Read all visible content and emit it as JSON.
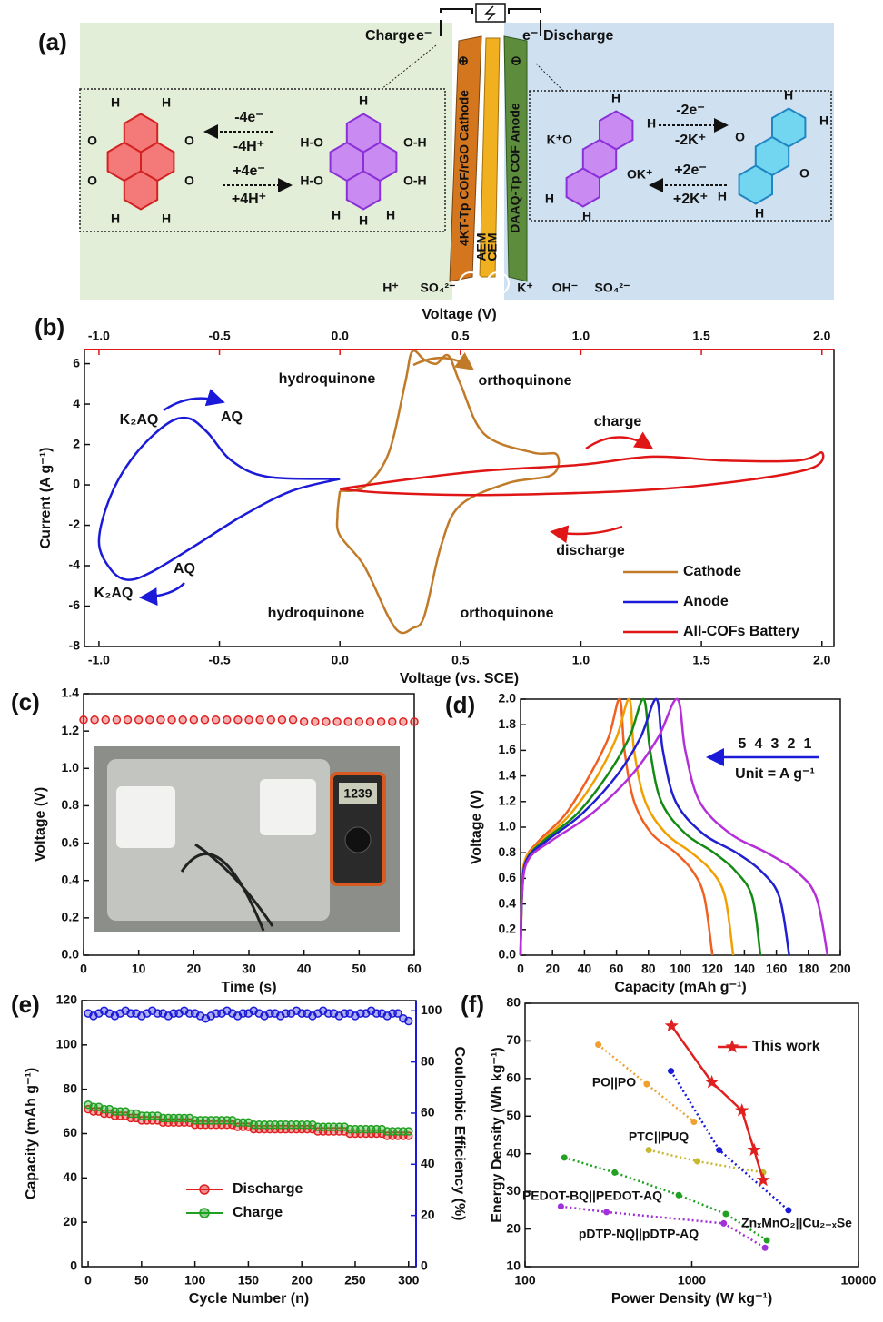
{
  "figure_a": {
    "label": "(a)",
    "charge": "Charge",
    "discharge": "Discharge",
    "electron_left": "e⁻",
    "electron_right": "e⁻",
    "plus": "⊕",
    "minus": "⊖",
    "cathode": "4KT-Tp COF/rGO Cathode",
    "aem": "AEM",
    "cem": "CEM",
    "anode": "DAAQ-Tp COF Anode",
    "ions": [
      "H⁺",
      "SO₄²⁻",
      "K⁺",
      "OH⁻",
      "SO₄²⁻"
    ],
    "left_reaction": [
      "-4e⁻",
      "-4H⁺",
      "+4e⁻",
      "+4H⁺"
    ],
    "right_reaction": [
      "-2e⁻",
      "-2K⁺",
      "+2e⁻",
      "+2K⁺"
    ],
    "molecules": [
      {
        "atoms": [
          "H",
          "H",
          "O",
          "O",
          "O",
          "O",
          "H",
          "H"
        ]
      },
      {
        "atoms": [
          "H",
          "H",
          "H-O",
          "H-O",
          "O-H",
          "O-H",
          "H",
          "H"
        ]
      },
      {
        "atoms": [
          "H",
          "H",
          "K⁺O",
          "OK⁺",
          "H",
          "H"
        ]
      },
      {
        "atoms": [
          "H",
          "H",
          "O",
          "O",
          "H",
          "H"
        ]
      }
    ]
  },
  "chart_data": [
    {
      "label": "(b)",
      "type": "line",
      "smooth": true,
      "xlabel": "Voltage (vs. SCE)",
      "ylabel": "Current (A g⁻¹)",
      "x2label": "Voltage (V)",
      "x2_color": "#e01515",
      "xlim": [
        -1.06,
        2.05
      ],
      "xticks": [
        {
          "value": -1,
          "label": "-1.0"
        },
        -0.5,
        {
          "value": 0,
          "label": "0.0"
        },
        0.5,
        {
          "value": 1,
          "label": "1.0"
        },
        1.5,
        {
          "value": 2,
          "label": "2.0"
        }
      ],
      "x2lim": [
        -1.06,
        2.05
      ],
      "x2ticks": [
        {
          "value": -1,
          "label": "-1.0"
        },
        -0.5,
        {
          "value": 0,
          "label": "0.0"
        },
        0.5,
        {
          "value": 1,
          "label": "1.0"
        },
        1.5,
        {
          "value": 2,
          "label": "2.0"
        }
      ],
      "ylim": [
        -8,
        6.7
      ],
      "yticks": [
        -8,
        -6,
        -4,
        -2,
        0,
        2,
        4,
        6
      ],
      "legend": "lower right",
      "series": [
        {
          "name": "Cathode",
          "color": "#c07a28",
          "x": [
            0.0,
            0.1,
            0.2,
            0.27,
            0.3,
            0.35,
            0.4,
            0.45,
            0.5,
            0.6,
            0.8,
            0.9,
            0.88,
            0.7,
            0.5,
            0.42,
            0.35,
            0.3,
            0.25,
            0.2,
            0.1,
            0.0,
            -0.01,
            0.0
          ],
          "values": [
            -0.3,
            -0.1,
            1.5,
            5.0,
            6.6,
            6.2,
            6.0,
            6.4,
            5.0,
            2.5,
            1.6,
            1.5,
            0.5,
            0.1,
            -1.0,
            -3.0,
            -6.5,
            -7.1,
            -7.3,
            -6.5,
            -4.0,
            -2.5,
            -1.5,
            -0.3
          ]
        },
        {
          "name": "Anode",
          "color": "#1a1ad8",
          "x": [
            0.0,
            -0.3,
            -0.45,
            -0.55,
            -0.63,
            -0.72,
            -0.85,
            -0.95,
            -1.0,
            -0.95,
            -0.88,
            -0.78,
            -0.6,
            -0.4,
            -0.2,
            0.0
          ],
          "values": [
            0.3,
            0.4,
            1.2,
            2.6,
            3.3,
            3.0,
            1.5,
            -0.5,
            -2.8,
            -4.2,
            -4.7,
            -4.3,
            -3.0,
            -1.5,
            -0.3,
            0.3
          ]
        },
        {
          "name": "All-COFs Battery",
          "color": "#e01515",
          "axis": "x2",
          "x": [
            0.0,
            0.3,
            0.6,
            1.0,
            1.3,
            1.6,
            1.9,
            2.0,
            1.95,
            1.6,
            1.2,
            0.6,
            0.2,
            0.0
          ],
          "values": [
            -0.2,
            0.3,
            0.7,
            1.0,
            1.4,
            1.2,
            1.2,
            1.6,
            0.8,
            0.1,
            -0.3,
            -0.5,
            -0.4,
            -0.2
          ]
        }
      ],
      "annotations": [
        {
          "text": "hydroquinone",
          "color": "#b87a2a"
        },
        {
          "text": "orthoquinone",
          "color": "#b87a2a"
        },
        {
          "text": "hydroquinone",
          "color": "#b87a2a"
        },
        {
          "text": "orthoquinone",
          "color": "#b87a2a"
        },
        {
          "text": "K₂AQ",
          "color": "#1a1ad8"
        },
        {
          "text": "AQ",
          "color": "#1a1ad8"
        },
        {
          "text": "AQ",
          "color": "#1a1ad8"
        },
        {
          "text": "K₂AQ",
          "color": "#1a1ad8"
        },
        {
          "text": "charge",
          "color": "#e01515"
        },
        {
          "text": "discharge",
          "color": "#e01515"
        }
      ]
    },
    {
      "label": "(c)",
      "type": "scatter",
      "xlabel": "Time (s)",
      "ylabel": "Voltage (V)",
      "xlim": [
        0,
        60
      ],
      "xticks": [
        0,
        10,
        20,
        30,
        40,
        50,
        60
      ],
      "ylim": [
        0,
        1.4
      ],
      "yticks": [
        {
          "value": 0,
          "label": "0.0"
        },
        0.2,
        0.4,
        0.6,
        0.8,
        {
          "value": 1,
          "label": "1.0"
        },
        1.2,
        1.4
      ],
      "x": [
        0,
        2,
        4,
        6,
        8,
        10,
        12,
        14,
        16,
        18,
        20,
        22,
        24,
        26,
        28,
        30,
        32,
        34,
        36,
        38,
        40,
        42,
        44,
        46,
        48,
        50,
        52,
        54,
        56,
        58,
        60
      ],
      "series": [
        {
          "color": "#e02020",
          "values": [
            1.26,
            1.26,
            1.26,
            1.26,
            1.26,
            1.26,
            1.26,
            1.26,
            1.26,
            1.26,
            1.26,
            1.26,
            1.26,
            1.26,
            1.26,
            1.26,
            1.26,
            1.26,
            1.26,
            1.26,
            1.25,
            1.25,
            1.25,
            1.25,
            1.25,
            1.25,
            1.25,
            1.25,
            1.25,
            1.25,
            1.25
          ]
        }
      ],
      "photo_display": "1239"
    },
    {
      "label": "(d)",
      "type": "line",
      "smooth": true,
      "xlabel": "Capacity (mAh g⁻¹)",
      "ylabel": "Voltage (V)",
      "xlim": [
        0,
        200
      ],
      "xticks": [
        0,
        20,
        40,
        60,
        80,
        100,
        120,
        140,
        160,
        180,
        200
      ],
      "ylim": [
        0,
        2
      ],
      "yticks": [
        {
          "value": 0,
          "label": "0.0"
        },
        0.2,
        0.4,
        0.6,
        0.8,
        {
          "value": 1,
          "label": "1.0"
        },
        1.2,
        1.4,
        1.6,
        1.8,
        {
          "value": 2,
          "label": "2.0"
        }
      ],
      "legend": "center right",
      "annotations": [
        {
          "text": "Unit = A g⁻¹",
          "color": "#1a1ad8"
        }
      ],
      "series": [
        {
          "name": "5",
          "color": "#f06020",
          "x": [
            0,
            1,
            3,
            12,
            28,
            43,
            55,
            62,
            65,
            71,
            82,
            97,
            108,
            115,
            120
          ],
          "values": [
            0,
            0.5,
            0.75,
            0.9,
            1.1,
            1.4,
            1.7,
            2.0,
            1.6,
            1.2,
            0.95,
            0.8,
            0.65,
            0.45,
            0
          ]
        },
        {
          "name": "4",
          "color": "#f0a000",
          "x": [
            0,
            1,
            3,
            14,
            31,
            48,
            60,
            68,
            71,
            78,
            91,
            107,
            120,
            128,
            133
          ],
          "values": [
            0,
            0.5,
            0.75,
            0.9,
            1.1,
            1.4,
            1.7,
            2.0,
            1.6,
            1.2,
            0.95,
            0.8,
            0.65,
            0.45,
            0
          ]
        },
        {
          "name": "3",
          "color": "#138a13",
          "x": [
            0,
            1,
            4,
            15,
            35,
            54,
            68,
            77,
            81,
            88,
            103,
            121,
            135,
            145,
            150
          ],
          "values": [
            0,
            0.5,
            0.75,
            0.9,
            1.1,
            1.4,
            1.7,
            2.0,
            1.6,
            1.2,
            0.95,
            0.8,
            0.65,
            0.45,
            0
          ]
        },
        {
          "name": "2",
          "color": "#2020d0",
          "x": [
            0,
            1,
            4,
            17,
            38,
            60,
            75,
            85,
            89,
            97,
            114,
            135,
            151,
            162,
            168
          ],
          "values": [
            0,
            0.5,
            0.75,
            0.9,
            1.1,
            1.4,
            1.7,
            2.0,
            1.6,
            1.2,
            0.95,
            0.8,
            0.65,
            0.45,
            0
          ]
        },
        {
          "name": "1",
          "color": "#b52fd8",
          "x": [
            0,
            1,
            5,
            20,
            44,
            69,
            86,
            98,
            103,
            112,
            131,
            154,
            173,
            185,
            192
          ],
          "values": [
            0,
            0.5,
            0.75,
            0.9,
            1.1,
            1.4,
            1.7,
            2.0,
            1.6,
            1.2,
            0.95,
            0.8,
            0.65,
            0.45,
            0
          ]
        }
      ]
    },
    {
      "label": "(e)",
      "type": "scatter",
      "xlabel": "Cycle Number (n)",
      "ylabel": "Capacity (mAh g⁻¹)",
      "y2label": "Coulombic Efficiency (%)",
      "y2_color": "#1a1ad8",
      "xlim": [
        -6,
        307
      ],
      "xticks": [
        0,
        50,
        100,
        150,
        200,
        250,
        300
      ],
      "ylim": [
        0,
        120
      ],
      "yticks": [
        0,
        20,
        40,
        60,
        80,
        100,
        120
      ],
      "y2lim": [
        0,
        104
      ],
      "y2ticks": [
        0,
        20,
        40,
        60,
        80,
        100
      ],
      "legend": "lower left",
      "x": [
        0,
        5,
        10,
        15,
        20,
        25,
        30,
        35,
        40,
        45,
        50,
        55,
        60,
        65,
        70,
        75,
        80,
        85,
        90,
        95,
        100,
        105,
        110,
        115,
        120,
        125,
        130,
        135,
        140,
        145,
        150,
        155,
        160,
        165,
        170,
        175,
        180,
        185,
        190,
        195,
        200,
        205,
        210,
        215,
        220,
        225,
        230,
        235,
        240,
        245,
        250,
        255,
        260,
        265,
        270,
        275,
        280,
        285,
        290,
        295,
        300
      ],
      "series": [
        {
          "name": "Discharge",
          "color": "#e02020",
          "values": [
            71,
            70,
            70,
            69,
            69,
            68,
            68,
            68,
            67,
            67,
            66,
            66,
            66,
            66,
            65,
            65,
            65,
            65,
            65,
            65,
            64,
            64,
            64,
            64,
            64,
            64,
            64,
            64,
            63,
            63,
            63,
            62,
            62,
            62,
            62,
            62,
            62,
            62,
            62,
            62,
            62,
            62,
            62,
            61,
            61,
            61,
            61,
            61,
            61,
            60,
            60,
            60,
            60,
            60,
            60,
            60,
            59,
            59,
            59,
            59,
            59
          ]
        },
        {
          "name": "Charge",
          "color": "#20a020",
          "values": [
            73,
            72,
            72,
            71,
            71,
            70,
            70,
            70,
            69,
            69,
            68,
            68,
            68,
            68,
            67,
            67,
            67,
            67,
            67,
            67,
            66,
            66,
            66,
            66,
            66,
            66,
            66,
            66,
            65,
            65,
            65,
            64,
            64,
            64,
            64,
            64,
            64,
            64,
            64,
            64,
            64,
            64,
            64,
            63,
            63,
            63,
            63,
            63,
            63,
            62,
            62,
            62,
            62,
            62,
            62,
            62,
            61,
            61,
            61,
            61,
            61
          ]
        },
        {
          "color": "#1a1ad8",
          "axis": "y2",
          "values": [
            99,
            98,
            99,
            100,
            99,
            98,
            99,
            100,
            99,
            99,
            98,
            99,
            100,
            99,
            99,
            98,
            99,
            99,
            100,
            99,
            99,
            98,
            97,
            98,
            99,
            99,
            100,
            99,
            98,
            99,
            99,
            100,
            99,
            98,
            99,
            99,
            98,
            99,
            99,
            100,
            99,
            99,
            98,
            99,
            100,
            99,
            99,
            98,
            99,
            99,
            98,
            99,
            99,
            100,
            99,
            99,
            98,
            99,
            99,
            97,
            96
          ]
        }
      ]
    },
    {
      "label": "(f)",
      "type": "line",
      "xlog": true,
      "xlabel": "Power Density (W kg⁻¹)",
      "ylabel": "Energy Density (Wh kg⁻¹)",
      "xlim": [
        100,
        10000
      ],
      "xticks": [
        100,
        1000,
        10000
      ],
      "ylim": [
        10,
        80
      ],
      "yticks": [
        10,
        20,
        30,
        40,
        50,
        60,
        70,
        80
      ],
      "legend": "upper right",
      "series": [
        {
          "name": "PO||PO",
          "color": "#f0a030",
          "line_style": "dotted",
          "marker": "circle",
          "x": [
            275,
            537,
            1030
          ],
          "values": [
            69,
            58.5,
            48.5
          ]
        },
        {
          "name": "PTC||PUQ",
          "color": "#c8b830",
          "line_style": "dotted",
          "marker": "circle",
          "x": [
            552,
            1080,
            2680
          ],
          "values": [
            41,
            38,
            35
          ]
        },
        {
          "name": "PEDOT-BQ||PEDOT-AQ",
          "color": "#22a022",
          "line_style": "dotted",
          "marker": "circle",
          "x": [
            172,
            345,
            835,
            1600,
            2820
          ],
          "values": [
            39,
            35,
            29,
            24,
            17
          ]
        },
        {
          "name": "pDTP-NQ||pDTP-AQ",
          "color": "#a030d8",
          "line_style": "dotted",
          "marker": "circle",
          "x": [
            164,
            308,
            1555,
            2750
          ],
          "values": [
            26,
            24.5,
            21.5,
            15
          ]
        },
        {
          "name": "ZnₓMnO₂||Cu₂₋ₓSe",
          "color": "#1a1ad8",
          "line_style": "dotted",
          "marker": "circle",
          "x": [
            750,
            1460,
            3800
          ],
          "values": [
            62,
            41,
            25
          ]
        },
        {
          "name": "This work",
          "color": "#e02020",
          "line_style": "solid",
          "marker": "star",
          "in_legend": true,
          "x": [
            757,
            1320,
            2000,
            2365,
            2680
          ],
          "values": [
            74,
            59,
            51.5,
            41,
            33
          ]
        }
      ]
    }
  ]
}
